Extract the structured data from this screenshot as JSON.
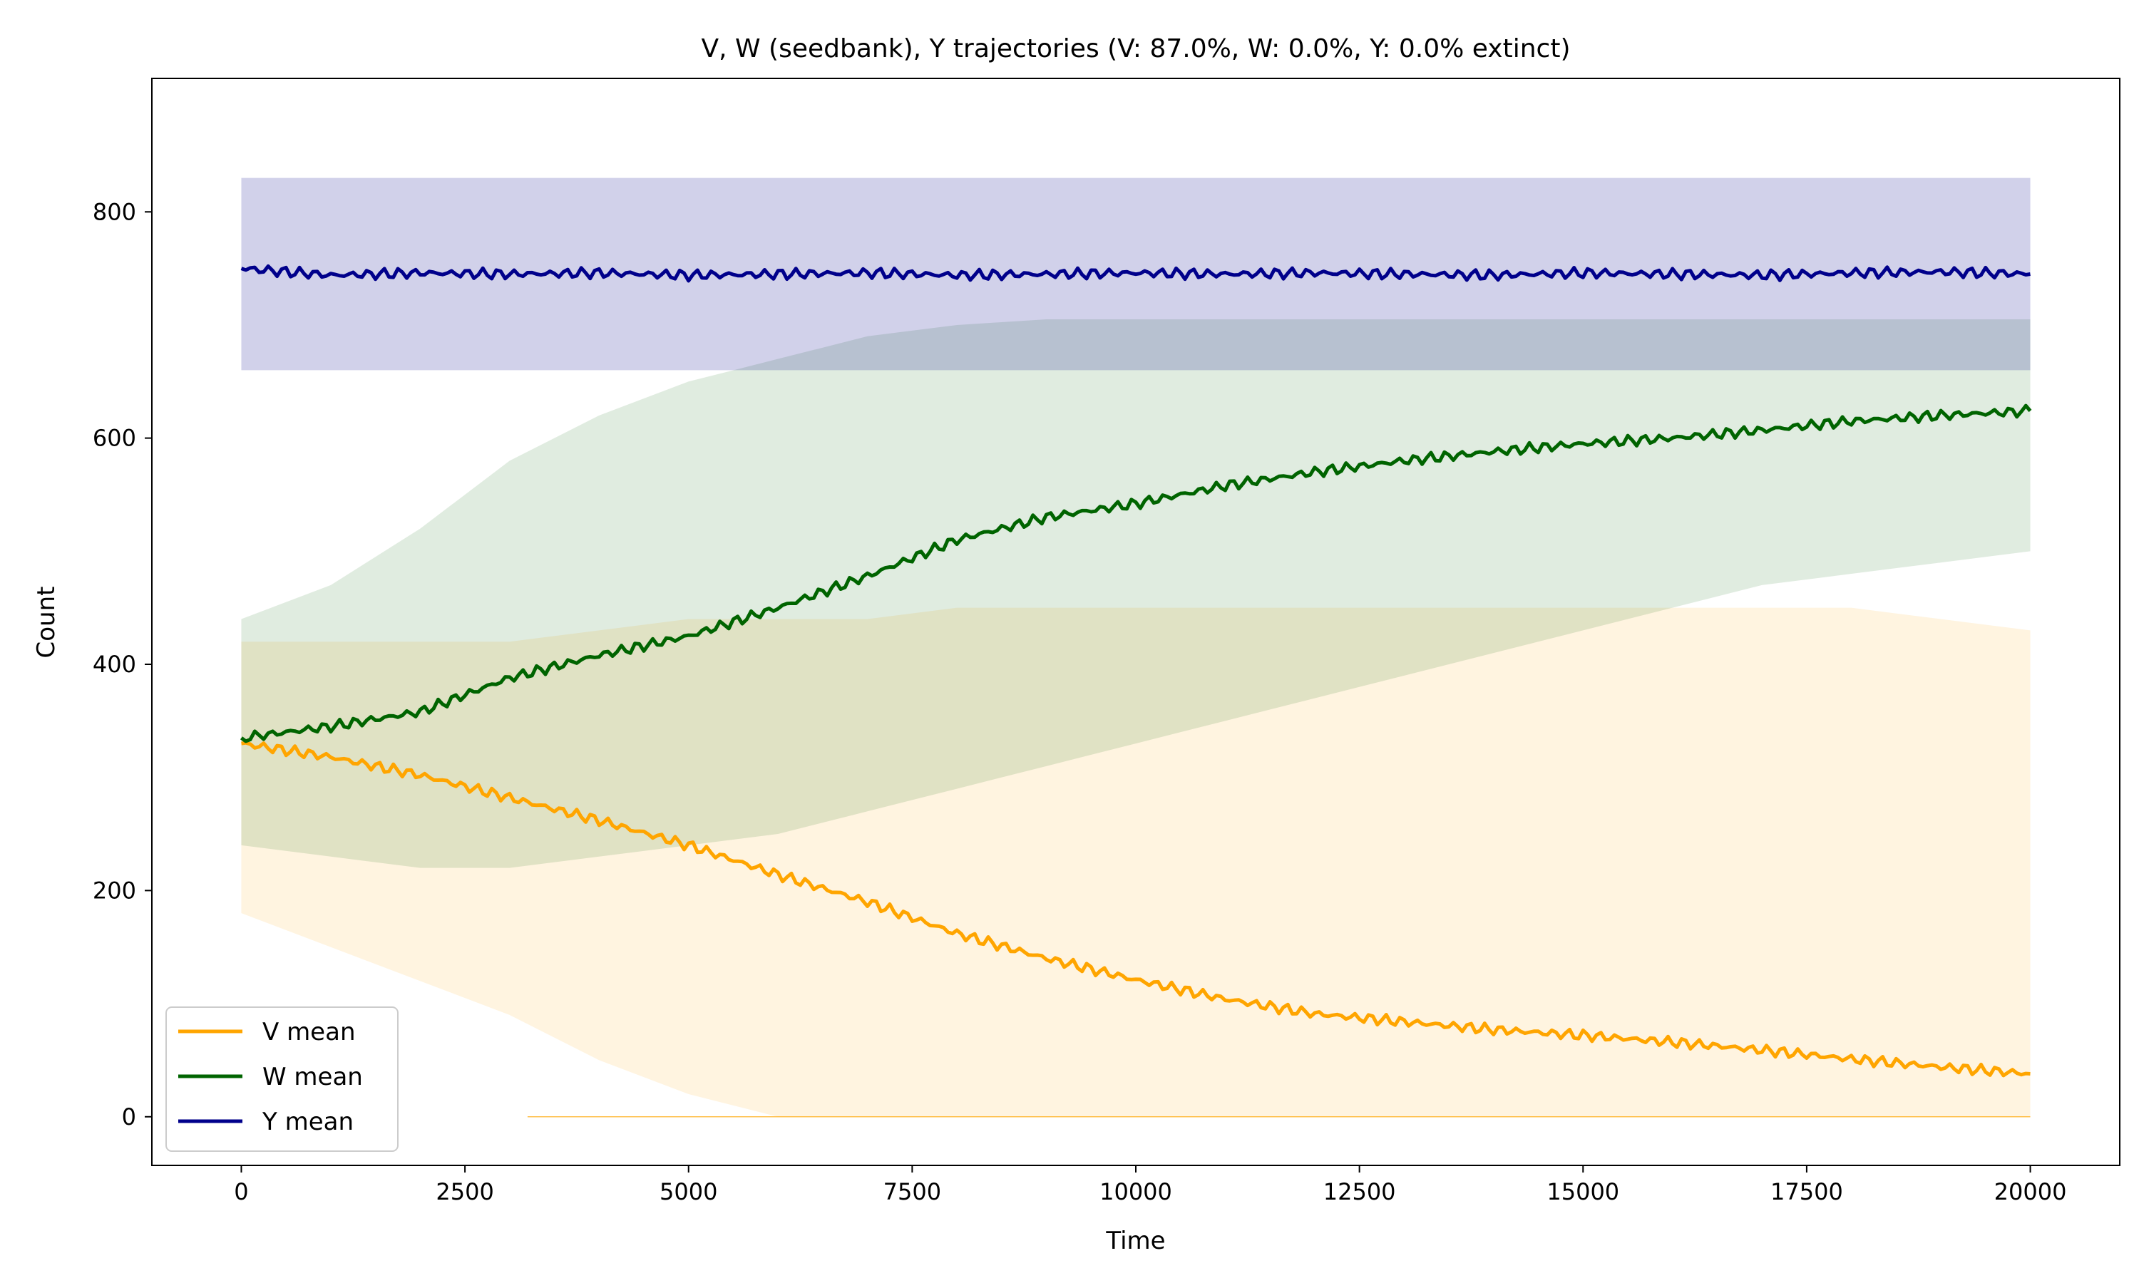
{
  "chart_data": {
    "type": "line",
    "title": "V, W (seedbank), Y trajectories (V: 87.0%, W: 0.0%, Y: 0.0% extinct)",
    "xlabel": "Time",
    "ylabel": "Count",
    "xlim": [
      -1000,
      21000
    ],
    "ylim": [
      -43,
      918
    ],
    "xticks": [
      0,
      2500,
      5000,
      7500,
      10000,
      12500,
      15000,
      17500,
      20000
    ],
    "yticks": [
      0,
      200,
      400,
      600,
      800
    ],
    "grid": false,
    "legend_position": "lower-left",
    "x": [
      0,
      1000,
      2000,
      3000,
      4000,
      5000,
      6000,
      7000,
      8000,
      9000,
      10000,
      11000,
      12000,
      13000,
      14000,
      15000,
      16000,
      17000,
      18000,
      19000,
      20000
    ],
    "series": [
      {
        "name": "V mean",
        "color": "#ffa500",
        "values": [
          330,
          318,
          302,
          282,
          262,
          240,
          214,
          190,
          162,
          140,
          121,
          104,
          91,
          84,
          77,
          72,
          66,
          59,
          51,
          44,
          38
        ],
        "band_low": [
          180,
          150,
          120,
          90,
          50,
          20,
          0,
          0,
          0,
          0,
          0,
          0,
          0,
          0,
          0,
          0,
          0,
          0,
          0,
          0,
          0
        ],
        "band_high": [
          420,
          420,
          420,
          420,
          430,
          440,
          440,
          440,
          450,
          450,
          450,
          450,
          450,
          450,
          450,
          450,
          450,
          450,
          450,
          440,
          430
        ]
      },
      {
        "name": "W mean",
        "color": "#006400",
        "values": [
          335,
          345,
          358,
          388,
          408,
          425,
          450,
          478,
          510,
          530,
          542,
          558,
          570,
          580,
          588,
          595,
          600,
          607,
          615,
          620,
          624
        ],
        "band_low": [
          240,
          230,
          220,
          220,
          230,
          240,
          250,
          270,
          290,
          310,
          330,
          350,
          370,
          390,
          410,
          430,
          450,
          470,
          480,
          490,
          500
        ],
        "band_high": [
          440,
          470,
          520,
          580,
          620,
          650,
          670,
          690,
          700,
          705,
          705,
          705,
          705,
          705,
          705,
          705,
          705,
          705,
          705,
          705,
          705
        ]
      },
      {
        "name": "Y mean",
        "color": "#00008b",
        "values": [
          750,
          744,
          746,
          745,
          746,
          744,
          745,
          746,
          744,
          745,
          746,
          745,
          746,
          745,
          744,
          746,
          745,
          744,
          746,
          747,
          745
        ],
        "band_low": [
          660,
          660,
          660,
          660,
          660,
          660,
          660,
          660,
          660,
          660,
          660,
          660,
          660,
          660,
          660,
          660,
          660,
          660,
          660,
          660,
          660
        ],
        "band_high": [
          830,
          830,
          830,
          830,
          830,
          830,
          830,
          830,
          830,
          830,
          830,
          830,
          830,
          830,
          830,
          830,
          830,
          830,
          830,
          830,
          830
        ]
      }
    ]
  }
}
